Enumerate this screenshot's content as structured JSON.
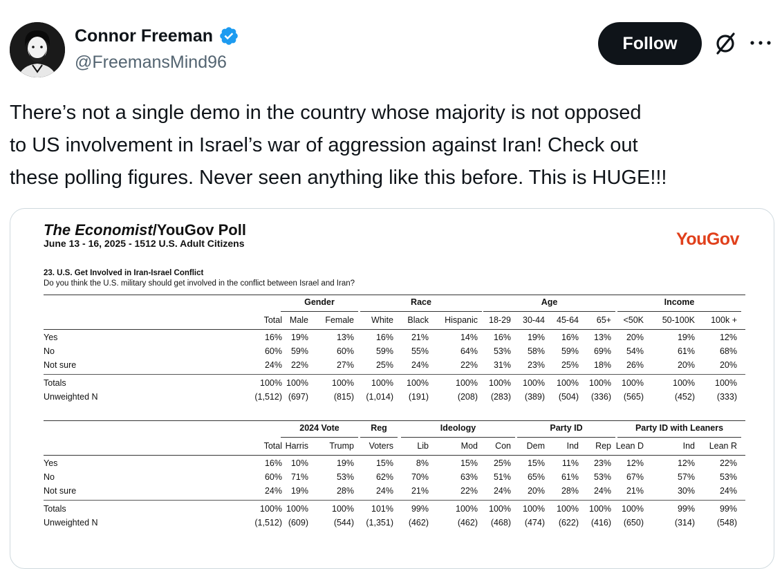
{
  "author": {
    "name": "Connor Freeman",
    "handle": "@FreemansMind96",
    "verified": true
  },
  "actions": {
    "follow_label": "Follow",
    "grok_icon": "grok-icon",
    "more_icon": "more-icon"
  },
  "tweet": {
    "text": "There’s not a single demo in the country whose majority is not opposed\nto US involvement in Israel’s war of aggression against Iran! Check out\nthese polling figures. Never seen anything like this before. This is HUGE!!!"
  },
  "poll": {
    "title_italic": "The Economist",
    "title_rest": "/YouGov Poll",
    "subtitle": "June 13 - 16, 2025 - 1512 U.S. Adult Citizens",
    "logo": "YouGov",
    "logo_color": "#e0401c",
    "question_title": "23. U.S. Get Involved in Iran-Israel Conflict",
    "question_text": "Do you think the U.S. military should get involved in the conflict between Israel and Iran?",
    "tables": [
      {
        "groups": [
          "Gender",
          "Race",
          "Age",
          "Income"
        ],
        "columns": [
          "Total",
          "Male",
          "Female",
          "White",
          "Black",
          "Hispanic",
          "18-29",
          "30-44",
          "45-64",
          "65+",
          "<50K",
          "50-100K",
          "100k +"
        ],
        "rows": [
          {
            "label": "Yes",
            "values": [
              "16%",
              "19%",
              "13%",
              "16%",
              "21%",
              "14%",
              "16%",
              "19%",
              "16%",
              "13%",
              "20%",
              "19%",
              "12%"
            ]
          },
          {
            "label": "No",
            "values": [
              "60%",
              "59%",
              "60%",
              "59%",
              "55%",
              "64%",
              "53%",
              "58%",
              "59%",
              "69%",
              "54%",
              "61%",
              "68%"
            ]
          },
          {
            "label": "Not sure",
            "values": [
              "24%",
              "22%",
              "27%",
              "25%",
              "24%",
              "22%",
              "31%",
              "23%",
              "25%",
              "18%",
              "26%",
              "20%",
              "20%"
            ]
          }
        ],
        "totals": [
          {
            "label": "Totals",
            "values": [
              "100%",
              "100%",
              "100%",
              "100%",
              "100%",
              "100%",
              "100%",
              "100%",
              "100%",
              "100%",
              "100%",
              "100%",
              "100%"
            ]
          },
          {
            "label": "Unweighted N",
            "values": [
              "(1,512)",
              "(697)",
              "(815)",
              "(1,014)",
              "(191)",
              "(208)",
              "(283)",
              "(389)",
              "(504)",
              "(336)",
              "(565)",
              "(452)",
              "(333)"
            ]
          }
        ]
      },
      {
        "groups": [
          "2024 Vote",
          "Reg",
          "Ideology",
          "Party ID",
          "Party ID with Leaners"
        ],
        "columns": [
          "Total",
          "Harris",
          "Trump",
          "Voters",
          "Lib",
          "Mod",
          "Con",
          "Dem",
          "Ind",
          "Rep",
          "Lean D",
          "Ind",
          "Lean R"
        ],
        "rows": [
          {
            "label": "Yes",
            "values": [
              "16%",
              "10%",
              "19%",
              "15%",
              "8%",
              "15%",
              "25%",
              "15%",
              "11%",
              "23%",
              "12%",
              "12%",
              "22%"
            ]
          },
          {
            "label": "No",
            "values": [
              "60%",
              "71%",
              "53%",
              "62%",
              "70%",
              "63%",
              "51%",
              "65%",
              "61%",
              "53%",
              "67%",
              "57%",
              "53%"
            ]
          },
          {
            "label": "Not sure",
            "values": [
              "24%",
              "19%",
              "28%",
              "24%",
              "21%",
              "22%",
              "24%",
              "20%",
              "28%",
              "24%",
              "21%",
              "30%",
              "24%"
            ]
          }
        ],
        "totals": [
          {
            "label": "Totals",
            "values": [
              "100%",
              "100%",
              "100%",
              "101%",
              "99%",
              "100%",
              "100%",
              "100%",
              "100%",
              "100%",
              "100%",
              "99%",
              "99%"
            ]
          },
          {
            "label": "Unweighted N",
            "values": [
              "(1,512)",
              "(609)",
              "(544)",
              "(1,351)",
              "(462)",
              "(462)",
              "(468)",
              "(474)",
              "(622)",
              "(416)",
              "(650)",
              "(314)",
              "(548)"
            ]
          }
        ]
      }
    ]
  }
}
